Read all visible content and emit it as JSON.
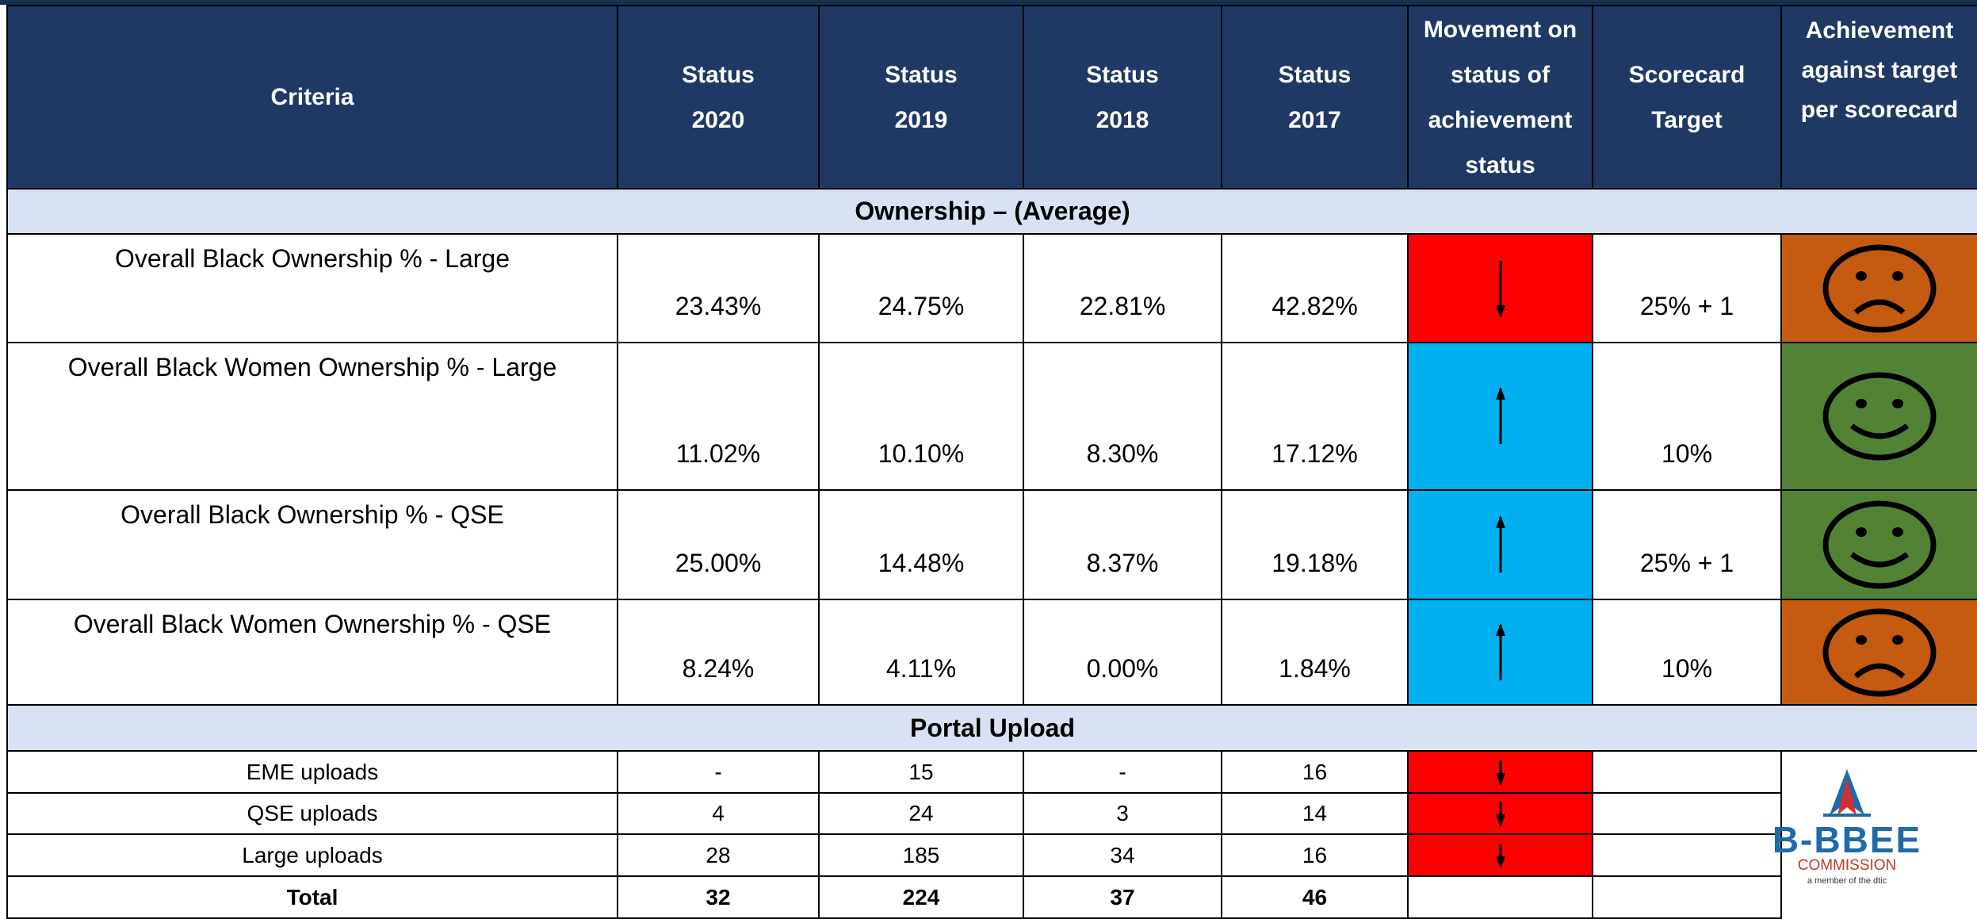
{
  "table": {
    "header": [
      "Criteria",
      "Status\n2020",
      "Status\n2019",
      "Status\n2018",
      "Status\n2017",
      "Movement on\nstatus of\nachievement\nstatus",
      "Scorecard\nTarget",
      "Achievement\nagainst target\nper scorecard"
    ],
    "sections": [
      {
        "title": "Ownership – (Average)",
        "rows": [
          [
            "Overall Black Ownership % - Large",
            "23.43%",
            "24.75%",
            "22.81%",
            "42.82%",
            "25% + 1"
          ],
          [
            "Overall Black Women Ownership % - Large",
            "11.02%",
            "10.10%",
            "8.30%",
            "17.12%",
            "10%"
          ],
          [
            "Overall Black Ownership % - QSE",
            "25.00%",
            "14.48%",
            "8.37%",
            "19.18%",
            "25% + 1"
          ],
          [
            "Overall Black Women Ownership % - QSE",
            "8.24%",
            "4.11%",
            "0.00%",
            "1.84%",
            "10%"
          ]
        ]
      },
      {
        "title": "Portal Upload",
        "rows": [
          [
            "EME uploads",
            "-",
            "15",
            "-",
            "16"
          ],
          [
            "QSE uploads",
            "4",
            "24",
            "3",
            "14"
          ],
          [
            "Large uploads",
            "28",
            "185",
            "34",
            "16"
          ],
          [
            "Total",
            "32",
            "224",
            "37",
            "46"
          ]
        ]
      }
    ]
  },
  "logo": {
    "name": "B-BBEE",
    "sub": "COMMISSION",
    "tag": "a member of the dtic"
  }
}
